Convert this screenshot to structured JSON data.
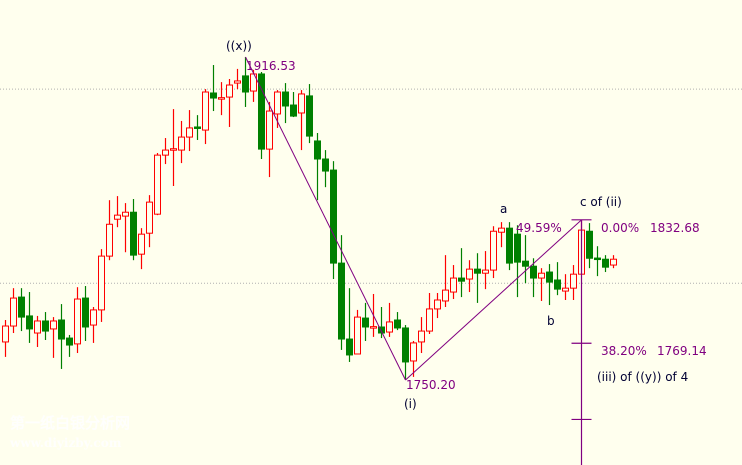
{
  "chart_data": {
    "type": "candlestick",
    "title": "",
    "xlabel": "",
    "ylabel": "",
    "ylim": [
      1694,
      1946
    ],
    "grid": {
      "horizontal": [
        1800,
        1900
      ],
      "style": "dotted"
    },
    "colors": {
      "up": "#FF0000",
      "down": "#008000",
      "lines": "#800080",
      "labels": "#800080",
      "wave_labels": "#000033",
      "background": "#FFFFEE"
    },
    "ohlc": [
      [
        1769.8,
        1781.1,
        1762.1,
        1778.0
      ],
      [
        1778.0,
        1797.5,
        1774.4,
        1792.4
      ],
      [
        1792.9,
        1797.5,
        1775.4,
        1782.6
      ],
      [
        1783.2,
        1795.5,
        1769.3,
        1776.5
      ],
      [
        1774.4,
        1783.2,
        1767.2,
        1780.6
      ],
      [
        1780.6,
        1785.2,
        1770.8,
        1775.4
      ],
      [
        1776.5,
        1782.6,
        1761.6,
        1780.6
      ],
      [
        1781.1,
        1789.3,
        1755.9,
        1771.3
      ],
      [
        1771.8,
        1773.4,
        1762.1,
        1768.2
      ],
      [
        1768.8,
        1798.0,
        1764.1,
        1791.9
      ],
      [
        1792.4,
        1798.6,
        1770.3,
        1777.5
      ],
      [
        1778.5,
        1787.8,
        1769.3,
        1786.3
      ],
      [
        1786.3,
        1817.6,
        1780.1,
        1814.0
      ],
      [
        1814.0,
        1842.8,
        1811.9,
        1830.4
      ],
      [
        1833.0,
        1844.9,
        1828.9,
        1835.1
      ],
      [
        1834.6,
        1841.3,
        1816.0,
        1836.6
      ],
      [
        1836.6,
        1843.4,
        1811.9,
        1814.5
      ],
      [
        1815.0,
        1828.4,
        1807.3,
        1825.3
      ],
      [
        1825.8,
        1845.4,
        1818.6,
        1841.8
      ],
      [
        1835.6,
        1867.1,
        1835.1,
        1866.0
      ],
      [
        1866.0,
        1874.8,
        1861.4,
        1868.6
      ],
      [
        1869.1,
        1889.7,
        1850.1,
        1869.3
      ],
      [
        1868.6,
        1883.6,
        1861.9,
        1875.3
      ],
      [
        1875.3,
        1889.2,
        1868.1,
        1880.0
      ],
      [
        1880.5,
        1886.6,
        1873.8,
        1880.3
      ],
      [
        1878.9,
        1900.0,
        1871.7,
        1898.5
      ],
      [
        1898.0,
        1912.4,
        1888.7,
        1895.4
      ],
      [
        1895.4,
        1903.6,
        1886.6,
        1895.6
      ],
      [
        1895.9,
        1905.2,
        1880.5,
        1902.1
      ],
      [
        1903.1,
        1910.4,
        1900.0,
        1904.2
      ],
      [
        1906.8,
        1916.53,
        1890.8,
        1898.5
      ],
      [
        1899.0,
        1909.9,
        1893.4,
        1907.8
      ],
      [
        1907.8,
        1908.8,
        1864.0,
        1869.1
      ],
      [
        1869.1,
        1893.4,
        1854.7,
        1888.7
      ],
      [
        1887.2,
        1899.5,
        1880.0,
        1898.5
      ],
      [
        1898.5,
        1903.1,
        1882.5,
        1891.3
      ],
      [
        1891.8,
        1898.5,
        1885.6,
        1886.1
      ],
      [
        1887.7,
        1899.5,
        1868.6,
        1897.5
      ],
      [
        1896.5,
        1902.6,
        1872.2,
        1875.8
      ],
      [
        1873.3,
        1877.4,
        1842.8,
        1864.0
      ],
      [
        1864.0,
        1868.6,
        1849.5,
        1857.8
      ],
      [
        1858.3,
        1862.9,
        1802.2,
        1810.4
      ],
      [
        1810.4,
        1824.8,
        1765.7,
        1771.3
      ],
      [
        1771.3,
        1797.5,
        1759.5,
        1763.1
      ],
      [
        1763.6,
        1786.3,
        1763.6,
        1782.6
      ],
      [
        1782.1,
        1789.9,
        1770.3,
        1777.5
      ],
      [
        1777.5,
        1794.5,
        1772.4,
        1777.7
      ],
      [
        1777.5,
        1787.8,
        1771.8,
        1774.4
      ],
      [
        1774.9,
        1789.9,
        1772.4,
        1780.1
      ],
      [
        1781.1,
        1785.2,
        1775.9,
        1777.0
      ],
      [
        1777.0,
        1778.5,
        1750.2,
        1759.5
      ],
      [
        1760.0,
        1770.3,
        1751.8,
        1769.3
      ],
      [
        1769.8,
        1782.6,
        1764.1,
        1775.4
      ],
      [
        1775.4,
        1795.0,
        1773.9,
        1786.8
      ],
      [
        1786.8,
        1795.0,
        1782.1,
        1791.4
      ],
      [
        1790.9,
        1814.5,
        1787.8,
        1796.5
      ],
      [
        1795.5,
        1809.4,
        1791.9,
        1802.7
      ],
      [
        1802.7,
        1818.1,
        1792.9,
        1801.1
      ],
      [
        1802.2,
        1811.9,
        1795.5,
        1807.3
      ],
      [
        1807.3,
        1815.5,
        1789.9,
        1805.2
      ],
      [
        1805.2,
        1816.6,
        1797.0,
        1806.8
      ],
      [
        1806.8,
        1829.4,
        1802.7,
        1826.8
      ],
      [
        1826.3,
        1831.5,
        1818.6,
        1828.4
      ],
      [
        1828.4,
        1831.5,
        1806.8,
        1810.4
      ],
      [
        1825.3,
        1829.9,
        1792.9,
        1810.9
      ],
      [
        1811.4,
        1824.8,
        1800.1,
        1808.8
      ],
      [
        1808.8,
        1812.9,
        1792.9,
        1802.7
      ],
      [
        1802.7,
        1807.8,
        1790.9,
        1805.2
      ],
      [
        1805.8,
        1809.9,
        1788.8,
        1800.6
      ],
      [
        1801.7,
        1810.9,
        1793.9,
        1797.0
      ],
      [
        1796.0,
        1804.7,
        1791.4,
        1797.5
      ],
      [
        1797.5,
        1809.4,
        1791.4,
        1804.7
      ],
      [
        1804.7,
        1832.68,
        1804.7,
        1827.4
      ],
      [
        1826.8,
        1831.0,
        1807.8,
        1812.9
      ],
      [
        1813.0,
        1819.1,
        1803.7,
        1812.9
      ],
      [
        1812.4,
        1814.5,
        1805.8,
        1808.3
      ],
      [
        1809.4,
        1814.5,
        1807.8,
        1812.4
      ]
    ],
    "trendlines": [
      {
        "from": {
          "bar": 30,
          "price": 1916.53
        },
        "to": {
          "bar": 50,
          "price": 1750.2
        }
      },
      {
        "from": {
          "bar": 50,
          "price": 1750.2
        },
        "to": {
          "bar": 72,
          "price": 1832.68
        }
      }
    ],
    "fibonacci": {
      "bar": 72,
      "levels": [
        {
          "pct_label": "0.00%",
          "price_label": "1832.68",
          "price": 1832.68
        },
        {
          "pct_label": "38.20%",
          "price_label": "1769.14",
          "price": 1769.14
        },
        {
          "price": 1729.9
        }
      ]
    },
    "annotations": {
      "wave_x": "((x))",
      "high_price": "1916.53",
      "low_price": "1750.20",
      "wave_i": "(i)",
      "wave_a": "a",
      "retrace_pct": "49.59%",
      "wave_c": "c of (ii)",
      "wave_b": "b",
      "wave_iii": "(iii) of ((y)) of 4"
    }
  },
  "watermark": {
    "line1": "第一纸白银分析网",
    "line2": "www.diyizby.com"
  }
}
